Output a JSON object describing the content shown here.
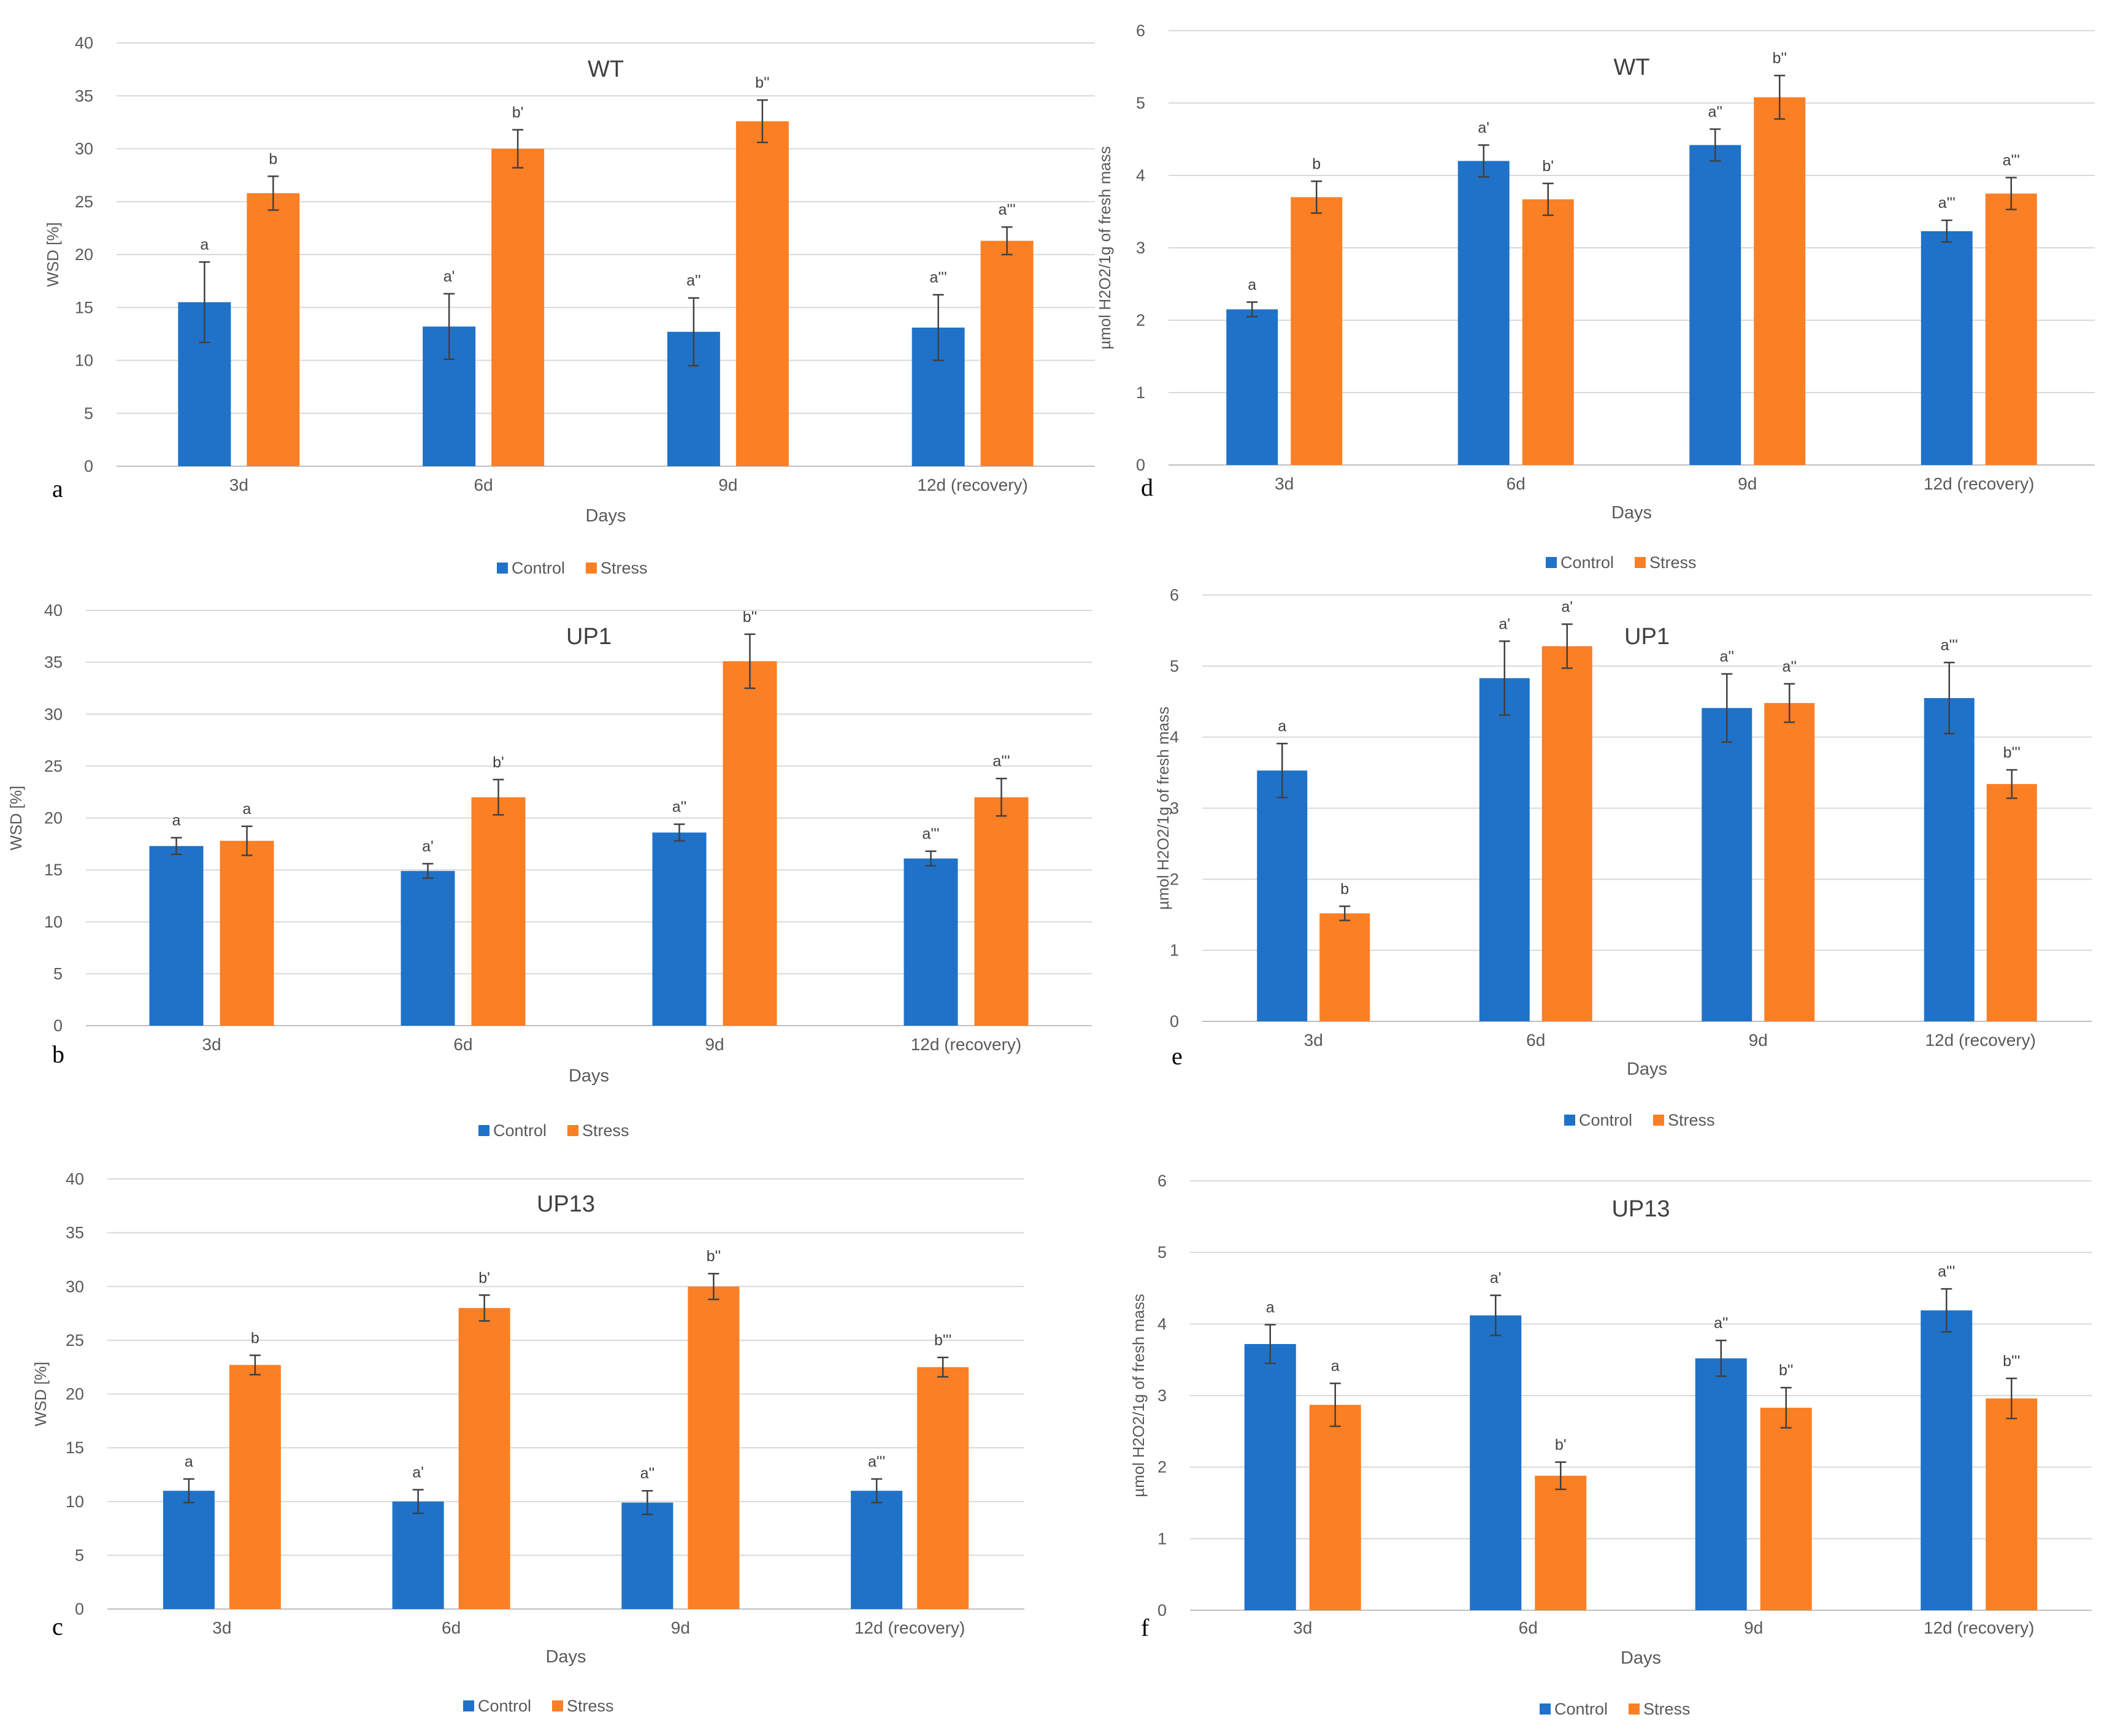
{
  "colors": {
    "control": "#1f72c8",
    "stress": "#fb7f25",
    "grid": "#d9d9d9",
    "axis": "#bfbfbf",
    "text": "#595959",
    "errorbar": "#404040"
  },
  "legend": {
    "control": "Control",
    "stress": "Stress"
  },
  "chart_data": [
    {
      "panel": "a",
      "type": "bar",
      "title": "WT",
      "xlabel": "Days",
      "ylabel": "WSD [%]",
      "categories": [
        "3d",
        "6d",
        "9d",
        "12d (recovery)"
      ],
      "ylim": [
        0,
        40
      ],
      "yticks": [
        0,
        5,
        10,
        15,
        20,
        25,
        30,
        35,
        40
      ],
      "series": [
        {
          "name": "Control",
          "values": [
            15.5,
            13.2,
            12.7,
            13.1
          ],
          "errors": [
            3.8,
            3.1,
            3.2,
            3.1
          ],
          "labels": [
            "a",
            "a'",
            "a''",
            "a'''"
          ]
        },
        {
          "name": "Stress",
          "values": [
            25.8,
            30.0,
            32.6,
            21.3
          ],
          "errors": [
            1.6,
            1.8,
            2.0,
            1.3
          ],
          "labels": [
            "b",
            "b'",
            "b''",
            "a'''"
          ]
        }
      ]
    },
    {
      "panel": "b",
      "type": "bar",
      "title": "UP1",
      "xlabel": "Days",
      "ylabel": "WSD [%]",
      "categories": [
        "3d",
        "6d",
        "9d",
        "12d (recovery)"
      ],
      "ylim": [
        0,
        40
      ],
      "yticks": [
        0,
        5,
        10,
        15,
        20,
        25,
        30,
        35,
        40
      ],
      "series": [
        {
          "name": "Control",
          "values": [
            17.3,
            14.9,
            18.6,
            16.1
          ],
          "errors": [
            0.8,
            0.7,
            0.8,
            0.7
          ],
          "labels": [
            "a",
            "a'",
            "a''",
            "a'''"
          ]
        },
        {
          "name": "Stress",
          "values": [
            17.8,
            22.0,
            35.1,
            22.0
          ],
          "errors": [
            1.4,
            1.7,
            2.6,
            1.8
          ],
          "labels": [
            "a",
            "b'",
            "b''",
            "a'''"
          ]
        }
      ]
    },
    {
      "panel": "c",
      "type": "bar",
      "title": "UP13",
      "xlabel": "Days",
      "ylabel": "WSD [%]",
      "categories": [
        "3d",
        "6d",
        "9d",
        "12d (recovery)"
      ],
      "ylim": [
        0,
        40
      ],
      "yticks": [
        0,
        5,
        10,
        15,
        20,
        25,
        30,
        35,
        40
      ],
      "series": [
        {
          "name": "Control",
          "values": [
            11.0,
            10.0,
            9.9,
            11.0
          ],
          "errors": [
            1.1,
            1.1,
            1.1,
            1.1
          ],
          "labels": [
            "a",
            "a'",
            "a''",
            "a'''"
          ]
        },
        {
          "name": "Stress",
          "values": [
            22.7,
            28.0,
            30.0,
            22.5
          ],
          "errors": [
            0.9,
            1.2,
            1.2,
            0.9
          ],
          "labels": [
            "b",
            "b'",
            "b''",
            "b'''"
          ]
        }
      ]
    },
    {
      "panel": "d",
      "type": "bar",
      "title": "WT",
      "xlabel": "Days",
      "ylabel": "µmol H2O2/1g of fresh mass",
      "categories": [
        "3d",
        "6d",
        "9d",
        "12d (recovery)"
      ],
      "ylim": [
        0,
        6
      ],
      "yticks": [
        0,
        1,
        2,
        3,
        4,
        5,
        6
      ],
      "series": [
        {
          "name": "Control",
          "values": [
            2.15,
            4.2,
            4.42,
            3.23
          ],
          "errors": [
            0.1,
            0.22,
            0.22,
            0.15
          ],
          "labels": [
            "a",
            "a'",
            "a''",
            "a'''"
          ]
        },
        {
          "name": "Stress",
          "values": [
            3.7,
            3.67,
            5.08,
            3.75
          ],
          "errors": [
            0.22,
            0.22,
            0.3,
            0.22
          ],
          "labels": [
            "b",
            "b'",
            "b''",
            "a'''"
          ]
        }
      ]
    },
    {
      "panel": "e",
      "type": "bar",
      "title": "UP1",
      "xlabel": "Days",
      "ylabel": "µmol H2O2/1g of fresh mass",
      "categories": [
        "3d",
        "6d",
        "9d",
        "12d (recovery)"
      ],
      "ylim": [
        0,
        6
      ],
      "yticks": [
        0,
        1,
        2,
        3,
        4,
        5,
        6
      ],
      "series": [
        {
          "name": "Control",
          "values": [
            3.53,
            4.83,
            4.41,
            4.55
          ],
          "errors": [
            0.38,
            0.52,
            0.48,
            0.5
          ],
          "labels": [
            "a",
            "a'",
            "a''",
            "a'''"
          ]
        },
        {
          "name": "Stress",
          "values": [
            1.52,
            5.28,
            4.48,
            3.34
          ],
          "errors": [
            0.1,
            0.31,
            0.27,
            0.2
          ],
          "labels": [
            "b",
            "a'",
            "a''",
            "b'''"
          ]
        }
      ]
    },
    {
      "panel": "f",
      "type": "bar",
      "title": "UP13",
      "xlabel": "Days",
      "ylabel": "µmol H2O2/1g of fresh mass",
      "categories": [
        "3d",
        "6d",
        "9d",
        "12d (recovery)"
      ],
      "ylim": [
        0,
        6
      ],
      "yticks": [
        0,
        1,
        2,
        3,
        4,
        5,
        6
      ],
      "series": [
        {
          "name": "Control",
          "values": [
            3.72,
            4.12,
            3.52,
            4.19
          ],
          "errors": [
            0.27,
            0.28,
            0.25,
            0.3
          ],
          "labels": [
            "a",
            "a'",
            "a''",
            "a'''"
          ]
        },
        {
          "name": "Stress",
          "values": [
            2.87,
            1.88,
            2.83,
            2.96
          ],
          "errors": [
            0.3,
            0.19,
            0.28,
            0.28
          ],
          "labels": [
            "a",
            "b'",
            "b''",
            "b'''"
          ]
        }
      ]
    }
  ]
}
